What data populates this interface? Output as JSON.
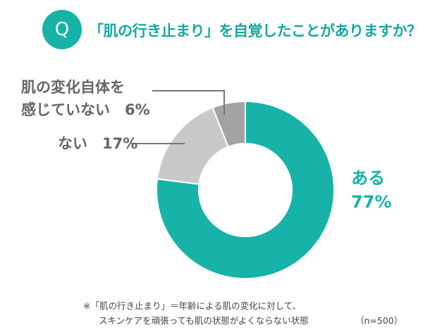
{
  "badge": "Q",
  "question": "「肌の行き止まり」を自覚したことがありますか？",
  "chart_data": {
    "type": "pie",
    "style": "donut",
    "categories": [
      "ある",
      "ない",
      "肌の変化自体を感じていない"
    ],
    "values": [
      77,
      17,
      6
    ],
    "labels": [
      {
        "lines": [
          "ある",
          "77%"
        ]
      },
      {
        "lines": [
          "ない　17%"
        ]
      },
      {
        "lines": [
          "肌の変化自体を",
          "感じていない　6%"
        ]
      }
    ],
    "colors": [
      "#17b3a8",
      "#c9c9cb",
      "#a3a3a5"
    ]
  },
  "note": {
    "line1": "※「肌の行き止まり」＝年齢による肌の変化に対して、",
    "line2": "スキンケアを頑張っても肌の状態がよくならない状態"
  },
  "sample": "（n=500）"
}
